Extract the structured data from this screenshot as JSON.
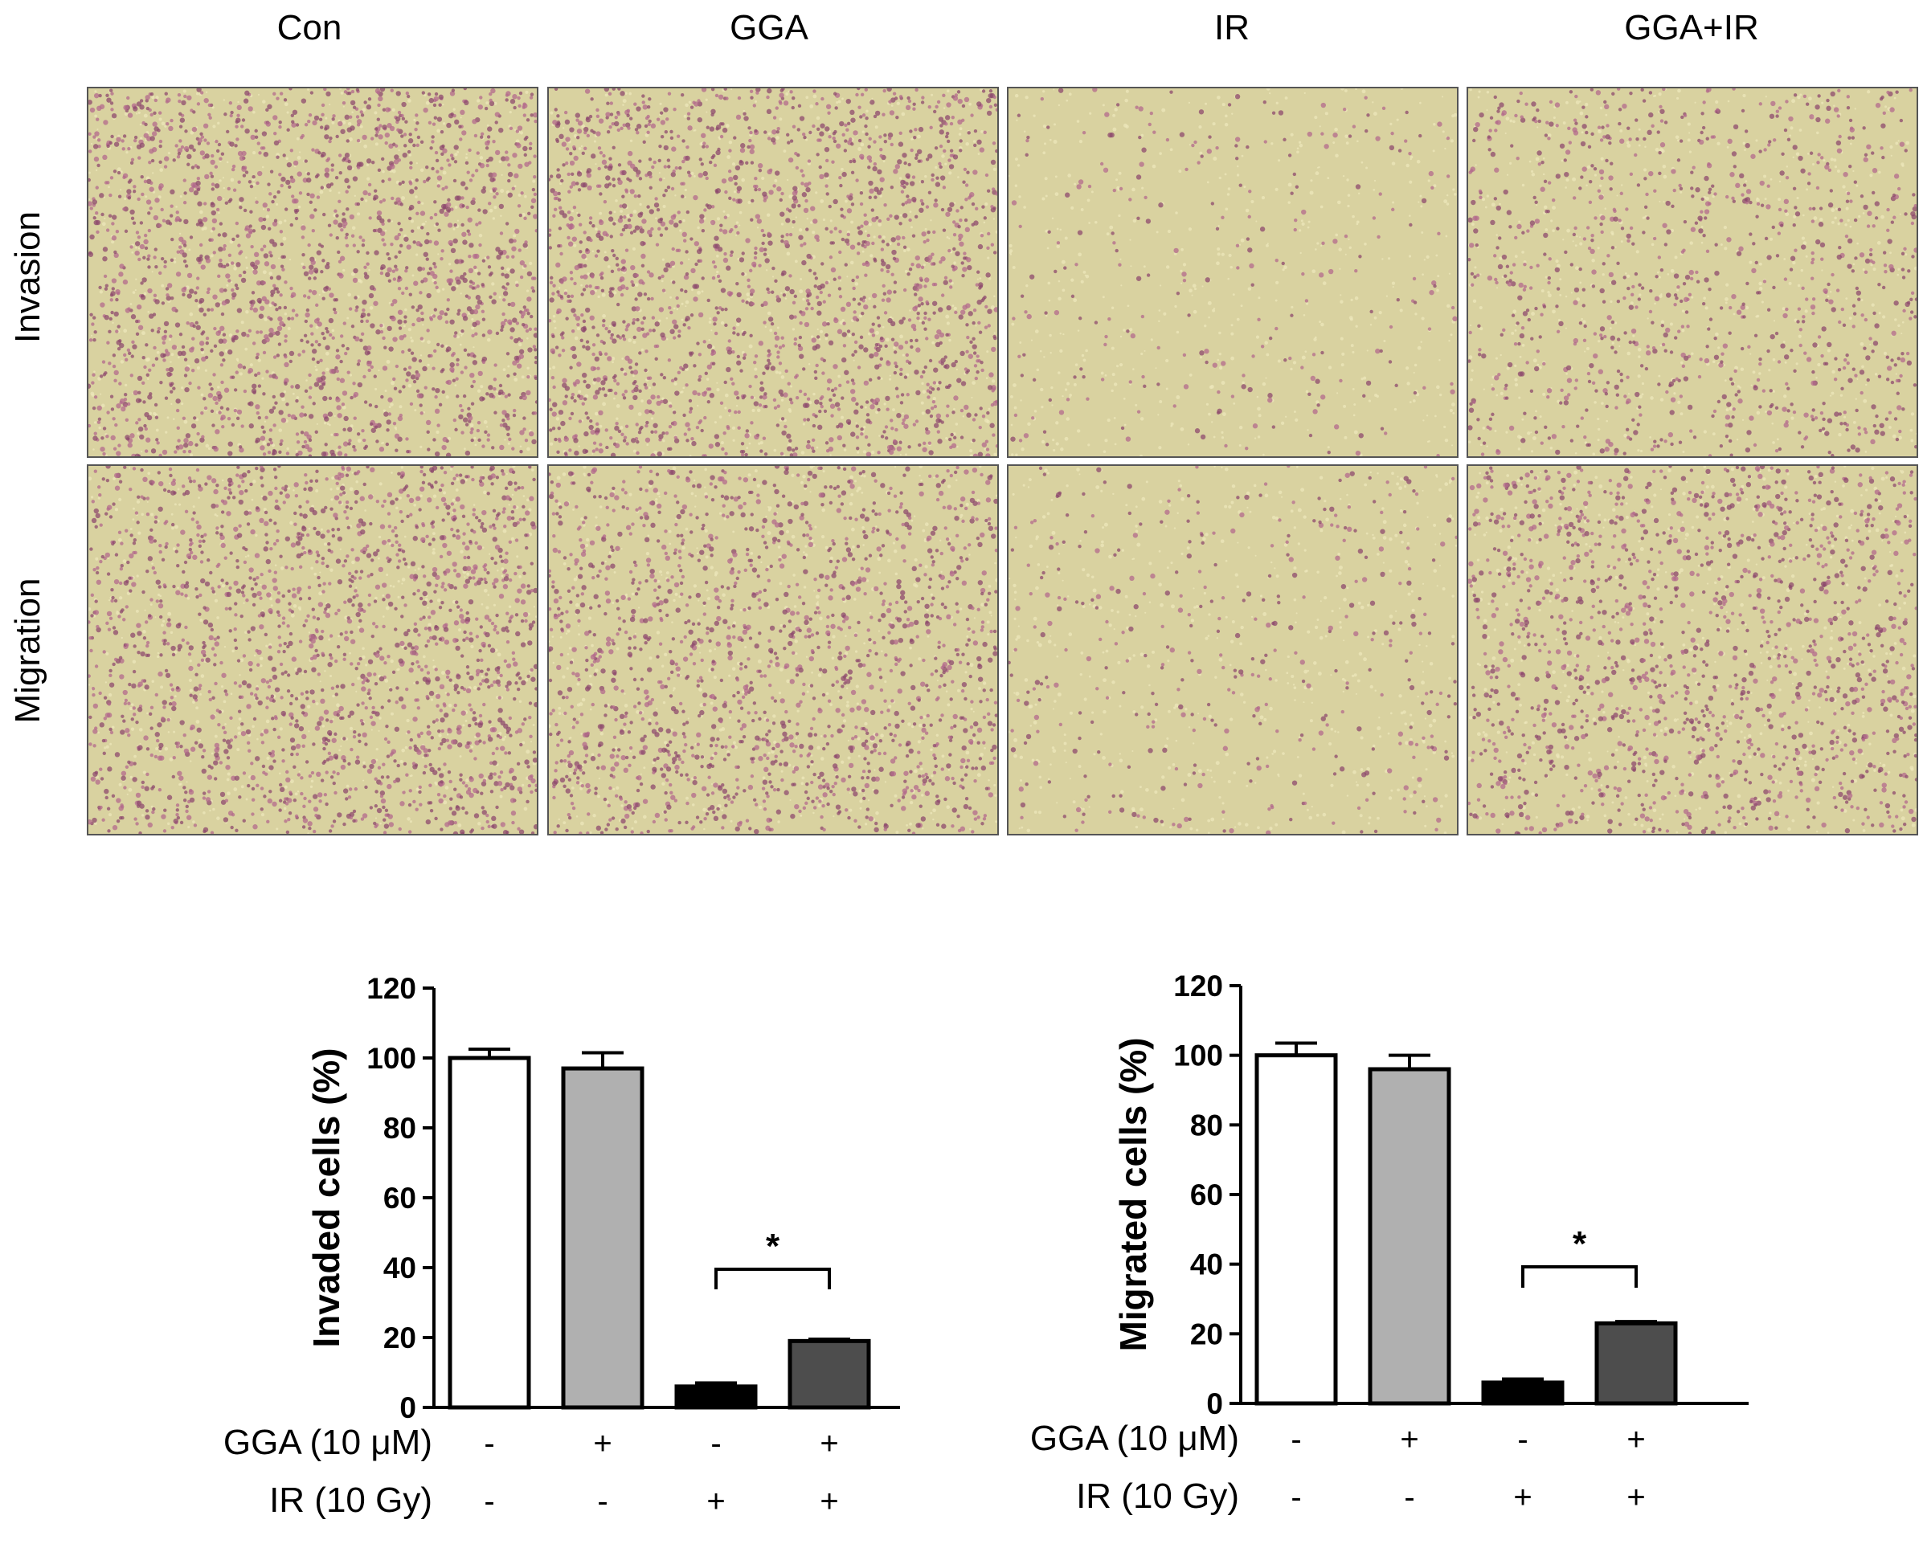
{
  "figure": {
    "columns": [
      "Con",
      "GGA",
      "IR",
      "GGA+IR"
    ],
    "rows": [
      "Invasion",
      "Migration"
    ],
    "panel_density": [
      [
        0.62,
        0.6,
        0.08,
        0.3
      ],
      [
        0.58,
        0.5,
        0.12,
        0.45
      ]
    ]
  },
  "chart_data": [
    {
      "type": "bar",
      "ylabel": "Invaded cells (%)",
      "ylim": [
        0,
        120
      ],
      "yticks": [
        "0",
        "20",
        "40",
        "60",
        "80",
        "100",
        "120"
      ],
      "values": [
        100,
        97,
        6,
        19
      ],
      "errors": [
        2.5,
        4.5,
        1,
        0.5
      ],
      "bar_colors": [
        "#ffffff",
        "#b0b0b0",
        "#000000",
        "#4d4d4d"
      ],
      "conditions": [
        {
          "label": "GGA (10 μM)",
          "marks": [
            "-",
            "+",
            "-",
            "+"
          ]
        },
        {
          "label": "IR (10 Gy)",
          "marks": [
            "-",
            "-",
            "+",
            "+"
          ]
        }
      ],
      "annotation": "*"
    },
    {
      "type": "bar",
      "ylabel": "Migrated cells (%)",
      "ylim": [
        0,
        120
      ],
      "yticks": [
        "0",
        "20",
        "40",
        "60",
        "80",
        "100",
        "120"
      ],
      "values": [
        100,
        96,
        6,
        23
      ],
      "errors": [
        3.5,
        4,
        1,
        0.5
      ],
      "bar_colors": [
        "#ffffff",
        "#b0b0b0",
        "#000000",
        "#4d4d4d"
      ],
      "conditions": [
        {
          "label": "GGA (10 μM)",
          "marks": [
            "-",
            "+",
            "-",
            "+"
          ]
        },
        {
          "label": "IR (10 Gy)",
          "marks": [
            "-",
            "-",
            "+",
            "+"
          ]
        }
      ],
      "annotation": "*"
    }
  ]
}
